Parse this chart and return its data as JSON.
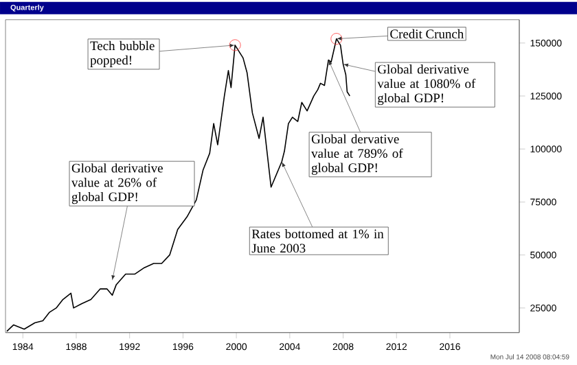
{
  "chart_data": {
    "type": "line",
    "title": "Quarterly",
    "x": [
      1982.8,
      1983.3,
      1984.1,
      1984.9,
      1985.5,
      1986.0,
      1986.5,
      1987.0,
      1987.6,
      1987.8,
      1988.4,
      1989.1,
      1989.8,
      1990.3,
      1990.7,
      1991.0,
      1991.7,
      1992.4,
      1993.1,
      1993.8,
      1994.4,
      1995.0,
      1995.6,
      1996.3,
      1997.0,
      1997.5,
      1998.0,
      1998.3,
      1998.6,
      1999.1,
      1999.4,
      1999.6,
      1999.9,
      2000.5,
      2000.8,
      2001.2,
      2001.7,
      2002.0,
      2002.6,
      2003.0,
      2003.4,
      2003.6,
      2003.9,
      2004.2,
      2004.6,
      2004.9,
      2005.3,
      2005.8,
      2006.1,
      2006.3,
      2006.6,
      2006.9,
      2007.1,
      2007.5,
      2007.8,
      2008.0,
      2008.2,
      2008.3,
      2008.5
    ],
    "series": [
      {
        "color": "#000000",
        "values": [
          14000,
          17000,
          15000,
          18000,
          19000,
          23000,
          25000,
          29000,
          32000,
          25000,
          27000,
          29000,
          34000,
          34000,
          31000,
          36000,
          41000,
          41000,
          44000,
          46000,
          46000,
          50000,
          62000,
          68000,
          76000,
          90000,
          98000,
          112000,
          102000,
          125000,
          137000,
          129000,
          149000,
          143000,
          136000,
          117000,
          105000,
          115000,
          82000,
          88000,
          94000,
          99000,
          112000,
          115000,
          113000,
          122000,
          118000,
          125000,
          128000,
          131000,
          130000,
          142000,
          141000,
          152000,
          149000,
          140000,
          135000,
          127000,
          125000
        ]
      }
    ],
    "xlim": [
      1982.7,
      2021.2
    ],
    "ylim": [
      13400,
      161000
    ],
    "xticks": [
      1984,
      1988,
      1992,
      1996,
      2000,
      2004,
      2008,
      2012,
      2016
    ],
    "yticks": [
      25000,
      50000,
      75000,
      100000,
      125000,
      150000
    ],
    "annotations": [
      {
        "text": "Tech bubble popped!",
        "x": 1999.9,
        "y": 149000
      },
      {
        "text": "Credit Crunch",
        "x": 2007.5,
        "y": 152000
      },
      {
        "text": "Global derivative value at 1080% of global GDP!",
        "x": 2008.0,
        "y": 140000
      },
      {
        "text": "Global dervative value at 789% of global GDP!",
        "x": 2006.9,
        "y": 142000
      },
      {
        "text": "Rates bottomed at 1% in June 2003",
        "x": 2003.4,
        "y": 94000
      },
      {
        "text": "Global derivative value at 26% of global GDP!",
        "x": 1990.7,
        "y": 38000
      },
      "Mon Jul 14 2008 08:04:59"
    ]
  }
}
